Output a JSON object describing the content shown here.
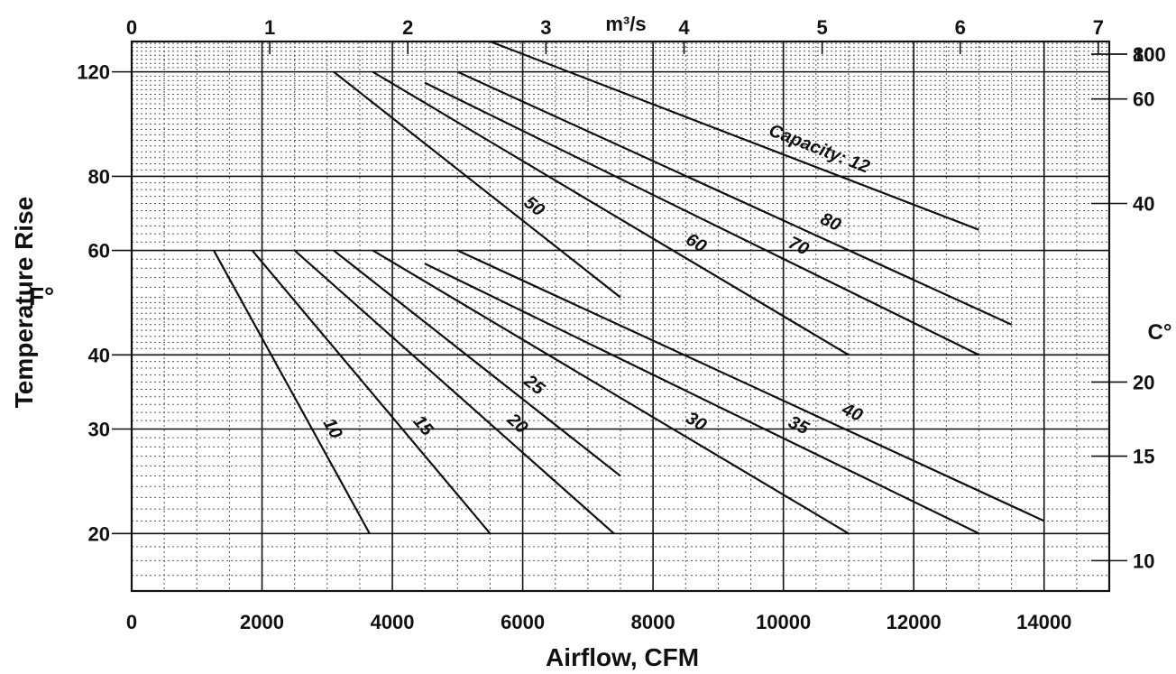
{
  "chart_data": {
    "type": "line",
    "title": "",
    "xlabel": "Airflow, CFM",
    "ylabel": "Temperature Rise",
    "y_unit_left": "F°",
    "y_unit_right": "C°",
    "x2_unit": "m³/s",
    "x_scale": "linear",
    "y_scale": "log",
    "xlim": [
      0,
      15000
    ],
    "ylim_F": [
      16,
      135
    ],
    "x_ticks": [
      0,
      2000,
      4000,
      6000,
      8000,
      10000,
      12000,
      14000
    ],
    "x_tick_labels": [
      "0",
      "2000",
      "4000",
      "6000",
      "8000",
      "10000",
      "12000",
      "14000"
    ],
    "x2_ticks": [
      0,
      1,
      2,
      3,
      4,
      5,
      6,
      7
    ],
    "x2_tick_labels": [
      "0",
      "1",
      "2",
      "3",
      "4",
      "5",
      "6",
      "7"
    ],
    "y_ticks_F": [
      20,
      30,
      40,
      60,
      80,
      120
    ],
    "y_tick_labels_F": [
      "20",
      "30",
      "40",
      "60",
      "80",
      "120"
    ],
    "y_ticks_C": [
      10,
      15,
      20,
      40,
      60,
      80,
      100
    ],
    "y_tick_labels_C": [
      "10",
      "15",
      "20",
      "40",
      "60",
      "80",
      "100"
    ],
    "grid": true,
    "series": [
      {
        "name": "10",
        "points": [
          [
            1260,
            60
          ],
          [
            3650,
            20
          ]
        ]
      },
      {
        "name": "15",
        "points": [
          [
            1850,
            60
          ],
          [
            5500,
            20
          ]
        ]
      },
      {
        "name": "20",
        "points": [
          [
            2500,
            60
          ],
          [
            7400,
            20
          ]
        ]
      },
      {
        "name": "25",
        "points": [
          [
            3100,
            60
          ],
          [
            7500,
            25
          ]
        ]
      },
      {
        "name": "30",
        "points": [
          [
            3700,
            60
          ],
          [
            11000,
            20
          ]
        ]
      },
      {
        "name": "35",
        "points": [
          [
            4500,
            57
          ],
          [
            13000,
            20
          ]
        ]
      },
      {
        "name": "40",
        "points": [
          [
            5000,
            60
          ],
          [
            14000,
            21
          ]
        ]
      },
      {
        "name": "50",
        "points": [
          [
            3100,
            120
          ],
          [
            7500,
            50
          ]
        ]
      },
      {
        "name": "60",
        "points": [
          [
            3700,
            120
          ],
          [
            11000,
            40
          ]
        ]
      },
      {
        "name": "70",
        "points": [
          [
            4500,
            115
          ],
          [
            13000,
            40
          ]
        ]
      },
      {
        "name": "80",
        "points": [
          [
            5000,
            120
          ],
          [
            13500,
            45
          ]
        ]
      },
      {
        "name": "Capacity: 12",
        "points": [
          [
            5500,
            135
          ],
          [
            13000,
            65
          ]
        ]
      }
    ]
  }
}
